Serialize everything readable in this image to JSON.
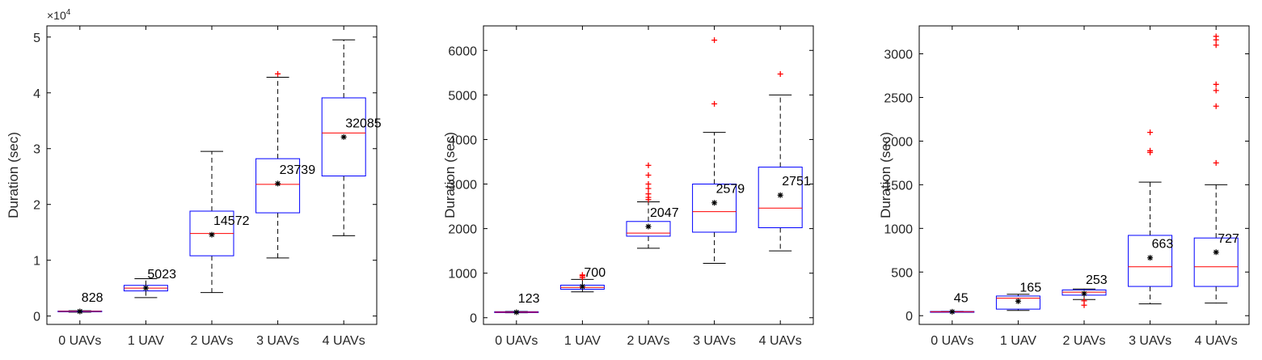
{
  "colors": {
    "box": "#0000ff",
    "median": "#ff0000",
    "outlier": "#ff0000",
    "whisker": "#000000",
    "mean_marker": "#000000",
    "axes": "#000000"
  },
  "chart_data": [
    {
      "type": "boxplot",
      "ylabel": "Duration (sec)",
      "exponent_label": "×10",
      "exponent_power": "4",
      "categories": [
        "0 UAVs",
        "1 UAV",
        "2 UAVs",
        "3 UAVs",
        "4 UAVs"
      ],
      "ylim": [
        -1500,
        52000
      ],
      "yticks": [
        0,
        10000,
        20000,
        30000,
        40000,
        50000
      ],
      "ytick_labels": [
        "0",
        "1",
        "2",
        "3",
        "4",
        "5"
      ],
      "boxes": [
        {
          "whisker_low": 700,
          "q1": 760,
          "median": 830,
          "q3": 900,
          "whisker_high": 950,
          "mean": 828,
          "mean_label": "828",
          "outliers": []
        },
        {
          "whisker_low": 3300,
          "q1": 4500,
          "median": 5000,
          "q3": 5500,
          "whisker_high": 6700,
          "mean": 5023,
          "mean_label": "5023",
          "outliers": []
        },
        {
          "whisker_low": 4200,
          "q1": 10800,
          "median": 14800,
          "q3": 18800,
          "whisker_high": 29500,
          "mean": 14572,
          "mean_label": "14572",
          "outliers": []
        },
        {
          "whisker_low": 10400,
          "q1": 18500,
          "median": 23600,
          "q3": 28200,
          "whisker_high": 42800,
          "mean": 23739,
          "mean_label": "23739",
          "outliers": [
            43400
          ]
        },
        {
          "whisker_low": 14400,
          "q1": 25100,
          "median": 32800,
          "q3": 39100,
          "whisker_high": 49500,
          "mean": 32085,
          "mean_label": "32085",
          "outliers": []
        }
      ]
    },
    {
      "type": "boxplot",
      "ylabel": "Duration (sec)",
      "categories": [
        "0 UAVs",
        "1 UAV",
        "2 UAVs",
        "3 UAVs",
        "4 UAVs"
      ],
      "ylim": [
        -150,
        6550
      ],
      "yticks": [
        0,
        1000,
        2000,
        3000,
        4000,
        5000,
        6000
      ],
      "ytick_labels": [
        "0",
        "1000",
        "2000",
        "3000",
        "4000",
        "5000",
        "6000"
      ],
      "boxes": [
        {
          "whisker_low": 110,
          "q1": 115,
          "median": 125,
          "q3": 135,
          "whisker_high": 140,
          "mean": 123,
          "mean_label": "123",
          "outliers": []
        },
        {
          "whisker_low": 580,
          "q1": 640,
          "median": 680,
          "q3": 730,
          "whisker_high": 860,
          "mean": 700,
          "mean_label": "700",
          "outliers": [
            900,
            940,
            960
          ]
        },
        {
          "whisker_low": 1560,
          "q1": 1830,
          "median": 1900,
          "q3": 2160,
          "whisker_high": 2600,
          "mean": 2047,
          "mean_label": "2047",
          "outliers": [
            2650,
            2700,
            2780,
            2900,
            3000,
            3200,
            3420
          ]
        },
        {
          "whisker_low": 1220,
          "q1": 1920,
          "median": 2380,
          "q3": 3000,
          "whisker_high": 4160,
          "mean": 2579,
          "mean_label": "2579",
          "outliers": [
            4800,
            6230
          ]
        },
        {
          "whisker_low": 1500,
          "q1": 2020,
          "median": 2460,
          "q3": 3380,
          "whisker_high": 5000,
          "mean": 2751,
          "mean_label": "2751",
          "outliers": [
            5470
          ]
        }
      ]
    },
    {
      "type": "boxplot",
      "ylabel": "Duration (sec)",
      "categories": [
        "0 UAVs",
        "1 UAV",
        "2 UAVs",
        "3 UAVs",
        "4 UAVs"
      ],
      "ylim": [
        -100,
        3320
      ],
      "yticks": [
        0,
        500,
        1000,
        1500,
        2000,
        2500,
        3000
      ],
      "ytick_labels": [
        "0",
        "500",
        "1000",
        "1500",
        "2000",
        "2500",
        "3000"
      ],
      "boxes": [
        {
          "whisker_low": 40,
          "q1": 42,
          "median": 45,
          "q3": 48,
          "whisker_high": 50,
          "mean": 45,
          "mean_label": "45",
          "outliers": []
        },
        {
          "whisker_low": 60,
          "q1": 75,
          "median": 200,
          "q3": 225,
          "whisker_high": 245,
          "mean": 165,
          "mean_label": "165",
          "outliers": []
        },
        {
          "whisker_low": 185,
          "q1": 235,
          "median": 270,
          "q3": 295,
          "whisker_high": 305,
          "mean": 253,
          "mean_label": "253",
          "outliers": [
            120,
            170
          ]
        },
        {
          "whisker_low": 135,
          "q1": 335,
          "median": 560,
          "q3": 920,
          "whisker_high": 1530,
          "mean": 663,
          "mean_label": "663",
          "outliers": [
            1870,
            1890,
            2100
          ]
        },
        {
          "whisker_low": 145,
          "q1": 335,
          "median": 560,
          "q3": 890,
          "whisker_high": 1500,
          "mean": 727,
          "mean_label": "727",
          "outliers": [
            1750,
            2400,
            2580,
            2650,
            3100,
            3160,
            3200
          ]
        }
      ]
    }
  ]
}
